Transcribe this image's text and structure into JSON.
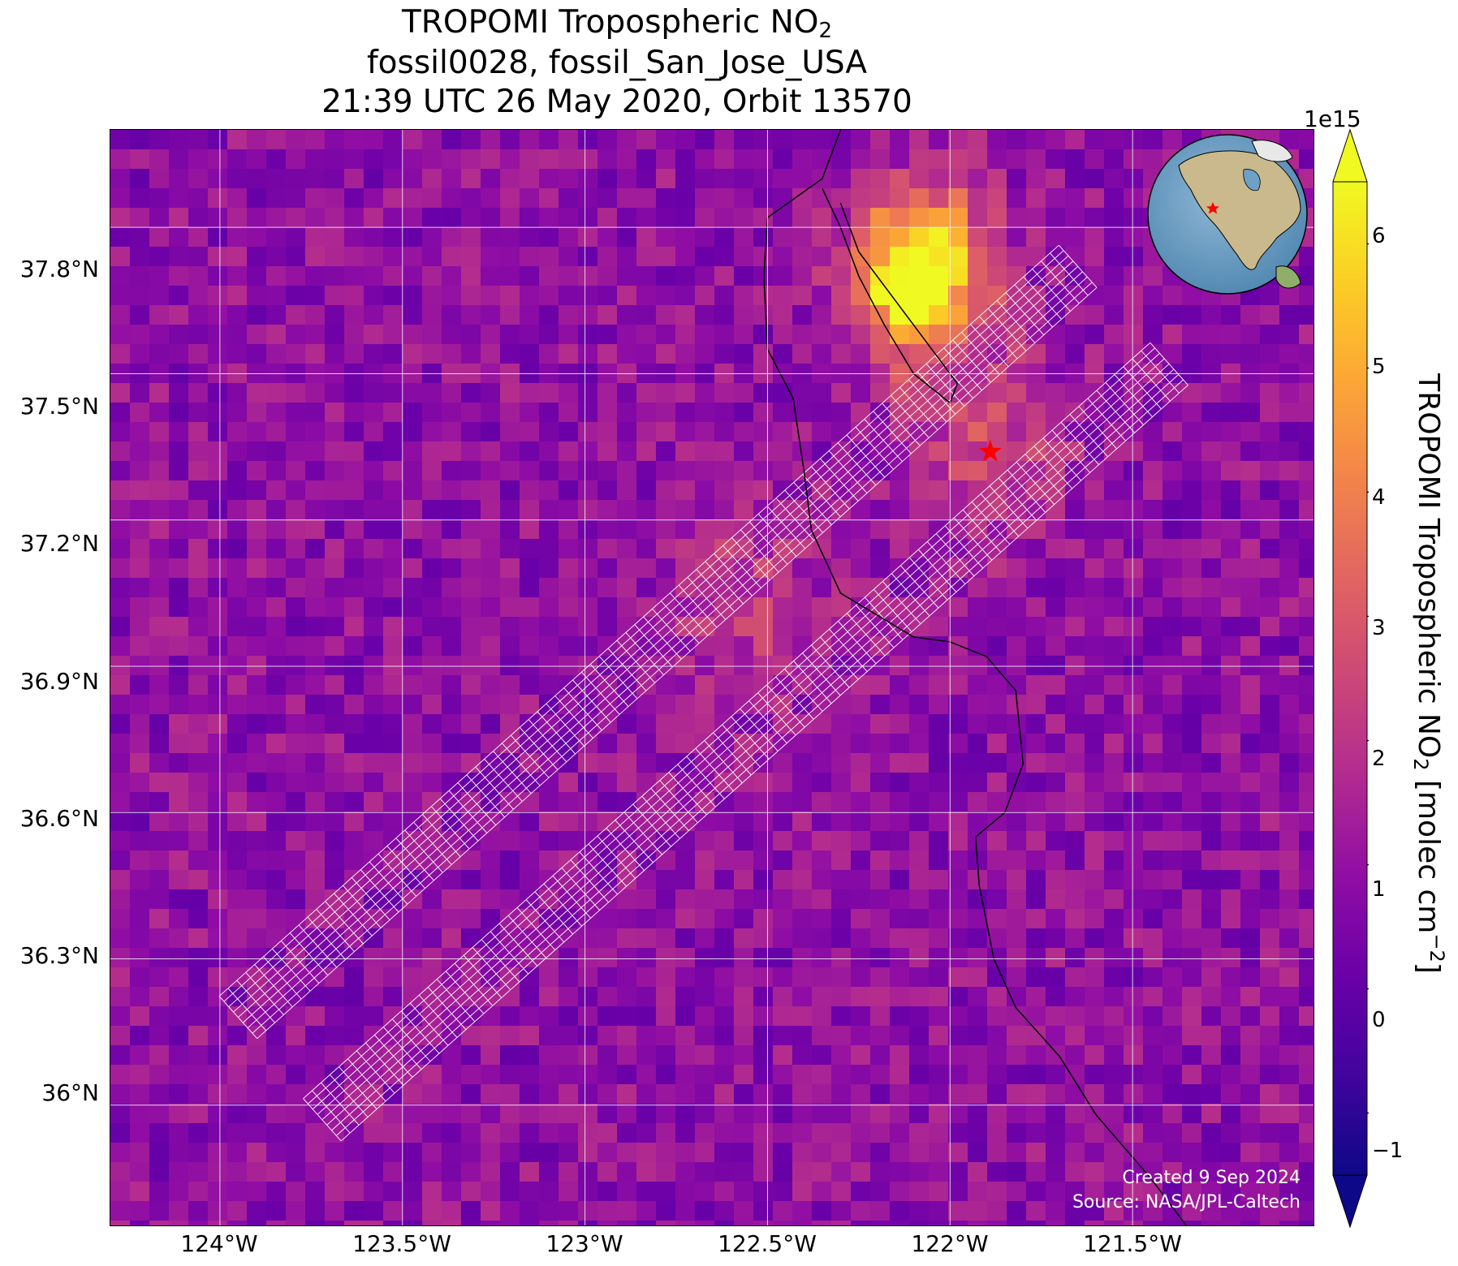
{
  "figure": {
    "title_line1": "TROPOMI Tropospheric NO",
    "title_line1_sub": "2",
    "title_line2": "fossil0028, fossil_San_Jose_USA",
    "title_line3": "21:39 UTC 26 May 2020, Orbit 13570",
    "credit_line1": "Created 9 Sep 2024",
    "credit_line2": "Source: NASA/JPL-Caltech"
  },
  "map": {
    "lon_range": [
      -124.3,
      -121.0
    ],
    "lat_range": [
      35.75,
      38.0
    ],
    "lon_ticks": [
      "124°W",
      "123.5°W",
      "123°W",
      "122.5°W",
      "122°W",
      "121.5°W"
    ],
    "lon_tick_values": [
      -124.0,
      -123.5,
      -123.0,
      -122.5,
      -122.0,
      -121.5
    ],
    "lat_ticks": [
      "37.8°N",
      "37.5°N",
      "37.2°N",
      "36.9°N",
      "36.6°N",
      "36.3°N",
      "36°N"
    ],
    "lat_tick_values": [
      37.8,
      37.5,
      37.2,
      36.9,
      36.6,
      36.3,
      36.0
    ],
    "gridlines": true,
    "target_marker": {
      "lon": -121.89,
      "lat": 37.34,
      "symbol": "star",
      "color": "#ff0000"
    },
    "coastline_color": "#000000",
    "sounding_grid_color": "#ffffff"
  },
  "colorbar": {
    "label_main": "TROPOMI Tropospheric NO",
    "label_sub": "2",
    "label_unit": " [molec cm",
    "label_sup": "−2",
    "label_end": "]",
    "exponent": "1e15",
    "range": [
      -1.5,
      6.5
    ],
    "ticks": [
      "−1",
      "0",
      "1",
      "2",
      "3",
      "4",
      "5",
      "6"
    ],
    "tick_values": [
      -1,
      0,
      1,
      2,
      3,
      4,
      5,
      6
    ],
    "colormap": "plasma",
    "extend": "both"
  },
  "colors": {
    "plasma": [
      "#0d0887",
      "#41049d",
      "#6a00a8",
      "#8f0da4",
      "#b12a90",
      "#cc4778",
      "#e16462",
      "#f2844b",
      "#fca636",
      "#fcce25",
      "#f0f921"
    ]
  }
}
